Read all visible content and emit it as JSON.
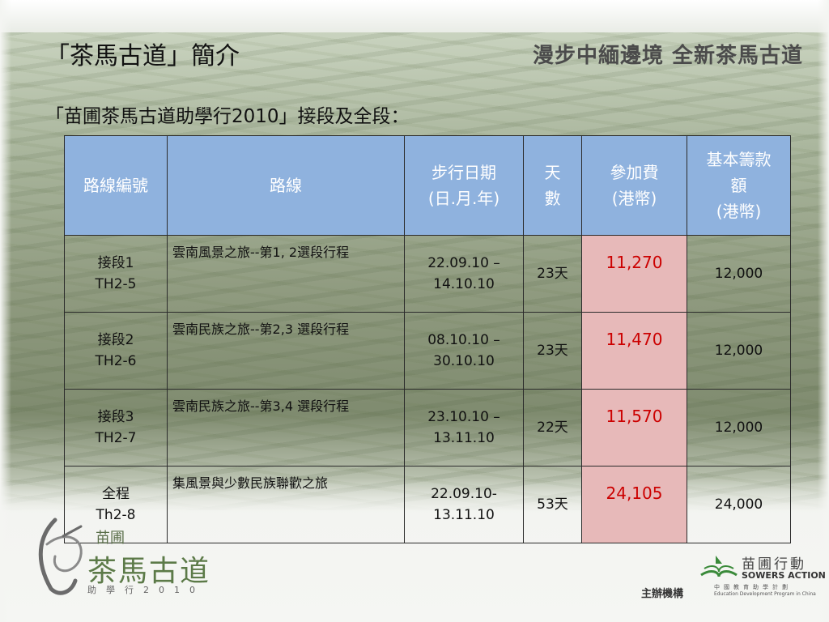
{
  "slide": {
    "title": "「茶馬古道」簡介",
    "tagline": "漫步中緬邊境  全新茶馬古道",
    "subtitle": "「苗圃茶馬古道助學行2010」接段及全段："
  },
  "table": {
    "headers": {
      "route_no": "路線編號",
      "route": "路線",
      "date_line1": "步行日期",
      "date_line2": "(日.月.年)",
      "days_line1": "天",
      "days_line2": "數",
      "fee_line1": "參加費",
      "fee_line2": "(港幣)",
      "fund_line1": "基本籌款",
      "fund_line2": "額",
      "fund_line3": "(港幣)"
    },
    "rows": [
      {
        "no1": "接段1",
        "no2": "TH2-5",
        "route": "雲南風景之旅--第1, 2選段行程",
        "date1": "22.09.10 –",
        "date2": "14.10.10",
        "days": "23天",
        "fee": "11,270",
        "fund": "12,000"
      },
      {
        "no1": "接段2",
        "no2": "TH2-6",
        "route": "雲南民族之旅--第2,3 選段行程",
        "date1": "08.10.10 –",
        "date2": "30.10.10",
        "days": "23天",
        "fee": "11,470",
        "fund": "12,000"
      },
      {
        "no1": "接段3",
        "no2": "TH2-7",
        "route": "雲南民族之旅--第3,4 選段行程",
        "date1": "23.10.10 –",
        "date2": "13.11.10",
        "days": "22天",
        "fee": "11,570",
        "fund": "12,000"
      },
      {
        "no1": "全程",
        "no2": "Th2-8",
        "route": "集風景與少數民族聯歡之旅",
        "date1": "22.09.10-",
        "date2": "13.11.10",
        "days": "53天",
        "fee": "24,105",
        "fund": "24,000"
      }
    ]
  },
  "logo_left": {
    "top": "苗圃",
    "main": "茶馬古道",
    "sub": "助學行2010"
  },
  "organizer_label": "主辦機構",
  "logo_right": {
    "cn": "苗圃行動",
    "en": "SOWERS ACTION",
    "tiny_cn": "中國教育助學計劃",
    "tiny_en": "Education Development Program in China"
  },
  "colors": {
    "header_bg": "#8fb2de",
    "fee_bg": "#e7b9b9",
    "fee_text": "#cc0000"
  }
}
